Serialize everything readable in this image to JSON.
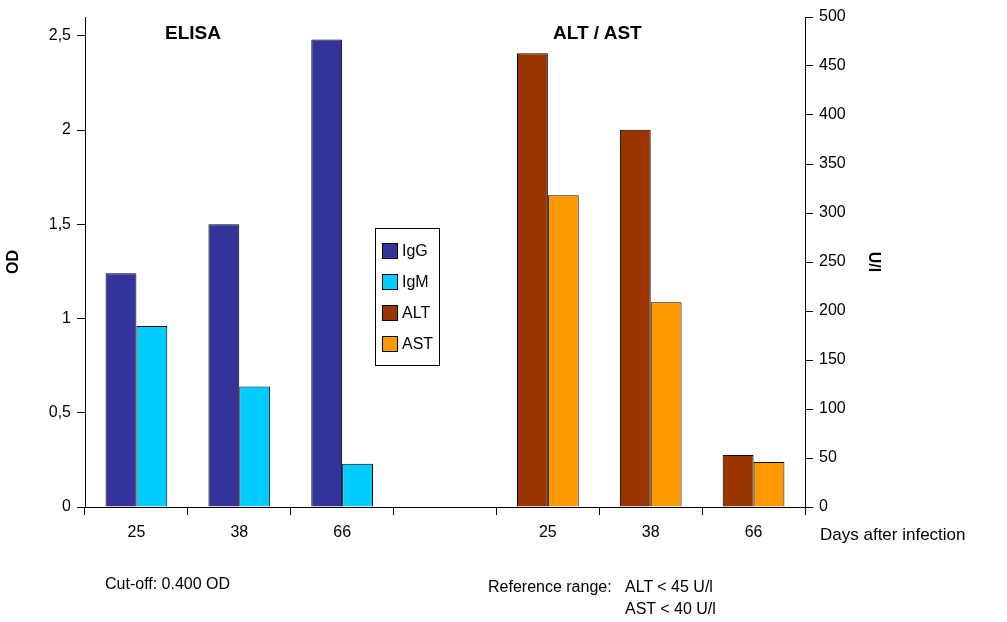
{
  "chart_data": {
    "type": "bar",
    "categories": [
      "25",
      "38",
      "66",
      null,
      "25",
      "38",
      "66"
    ],
    "series": [
      {
        "name": "IgG",
        "color": "#333399",
        "values": [
          1.24,
          1.5,
          2.48,
          null,
          null,
          null,
          null
        ]
      },
      {
        "name": "IgM",
        "color": "#00ccff",
        "values": [
          0.96,
          0.64,
          0.23,
          null,
          null,
          null,
          null
        ]
      },
      {
        "name": "ALT",
        "color": "#993300",
        "axis": "y2",
        "values": [
          null,
          null,
          null,
          null,
          463,
          385,
          53
        ]
      },
      {
        "name": "AST",
        "color": "#ff9900",
        "axis": "y2",
        "values": [
          null,
          null,
          null,
          null,
          318,
          209,
          46
        ]
      }
    ],
    "xlabel": "Days after infection",
    "ylabel": "OD",
    "y2label": "U/l",
    "ylim": [
      0,
      2.6
    ],
    "yticks": [
      0,
      {
        "value": 0.5,
        "label": "0,5"
      },
      1,
      {
        "value": 1.5,
        "label": "1,5"
      },
      2,
      {
        "value": 2.5,
        "label": "2,5"
      }
    ],
    "y2lim": [
      0,
      500
    ],
    "y2ticks": [
      0,
      50,
      100,
      150,
      200,
      250,
      300,
      350,
      400,
      450,
      500
    ],
    "annotations": [
      "ELISA",
      "ALT / AST",
      "Cut-off: 0.400 OD",
      "Reference range:",
      "ALT < 45 U/l",
      "AST < 40 U/l"
    ],
    "legend": "center",
    "grid": false
  }
}
